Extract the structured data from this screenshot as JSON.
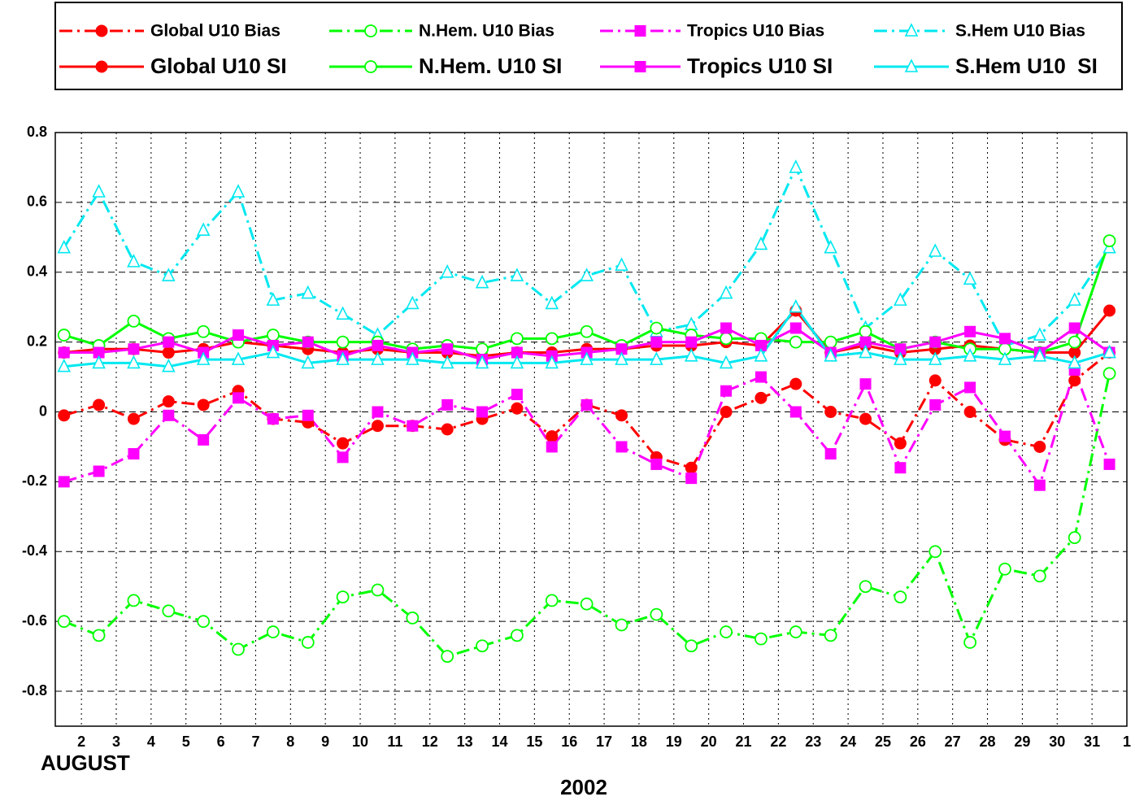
{
  "chart_data": {
    "type": "line",
    "x_label_start": "AUGUST",
    "xlabel": "2002",
    "x": [
      1.5,
      2.5,
      3.5,
      4.5,
      5.5,
      6.5,
      7.5,
      8.5,
      9.5,
      10.5,
      11.5,
      12.5,
      13.5,
      14.5,
      15.5,
      16.5,
      17.5,
      18.5,
      19.5,
      20.5,
      21.5,
      22.5,
      23.5,
      24.5,
      25.5,
      26.5,
      27.5,
      28.5,
      29.5,
      30.5,
      31.5
    ],
    "xlim": [
      1.25,
      32
    ],
    "xticks": [
      2,
      3,
      4,
      5,
      6,
      7,
      8,
      9,
      10,
      11,
      12,
      13,
      14,
      15,
      16,
      17,
      18,
      19,
      20,
      21,
      22,
      23,
      24,
      25,
      26,
      27,
      28,
      29,
      30,
      31,
      {
        "value": 32,
        "label": "1"
      }
    ],
    "xtick_highlight": [
      4,
      11,
      18,
      25,
      32
    ],
    "xtick_highlight_color": "#ff0000",
    "ylim": [
      -0.9,
      0.8
    ],
    "yticks": [
      -0.8,
      -0.6,
      -0.4,
      -0.2,
      0,
      0.2,
      0.4,
      0.6,
      0.8
    ],
    "grid": true,
    "legend": "top",
    "series": [
      {
        "name": "Global U10 Bias",
        "color": "#ff0000",
        "dash": "dashdot",
        "marker": "circle-filled",
        "values": [
          -0.01,
          0.02,
          -0.02,
          0.03,
          0.02,
          0.06,
          -0.02,
          -0.03,
          -0.09,
          -0.04,
          -0.04,
          -0.05,
          -0.02,
          0.01,
          -0.07,
          0.02,
          -0.01,
          -0.13,
          -0.16,
          0.0,
          0.04,
          0.08,
          0.0,
          -0.02,
          -0.09,
          0.09,
          0.0,
          -0.08,
          -0.1,
          0.09,
          0.17
        ]
      },
      {
        "name": "N.Hem. U10 Bias",
        "color": "#00ff00",
        "dash": "dashdot",
        "marker": "circle-open",
        "values": [
          -0.6,
          -0.64,
          -0.54,
          -0.57,
          -0.6,
          -0.68,
          -0.63,
          -0.66,
          -0.53,
          -0.51,
          -0.59,
          -0.7,
          -0.67,
          -0.64,
          -0.54,
          -0.55,
          -0.61,
          -0.58,
          -0.67,
          -0.63,
          -0.65,
          -0.63,
          -0.64,
          -0.5,
          -0.53,
          -0.4,
          -0.66,
          -0.45,
          -0.47,
          -0.36,
          0.11
        ]
      },
      {
        "name": "Tropics U10 Bias",
        "color": "#ff00ff",
        "dash": "dashdot",
        "marker": "square",
        "values": [
          -0.2,
          -0.17,
          -0.12,
          -0.01,
          -0.08,
          0.04,
          -0.02,
          -0.01,
          -0.13,
          0.0,
          -0.04,
          0.02,
          0.0,
          0.05,
          -0.1,
          0.02,
          -0.1,
          -0.15,
          -0.19,
          0.06,
          0.1,
          0.0,
          -0.12,
          0.08,
          -0.16,
          0.02,
          0.07,
          -0.07,
          -0.21,
          0.12,
          -0.15
        ]
      },
      {
        "name": "S.Hem U10 Bias",
        "color": "#00e8f0",
        "dash": "dashdot",
        "marker": "triangle-open",
        "values": [
          0.47,
          0.63,
          0.43,
          0.39,
          0.52,
          0.63,
          0.32,
          0.34,
          0.28,
          0.22,
          0.31,
          0.4,
          0.37,
          0.39,
          0.31,
          0.39,
          0.42,
          0.23,
          0.25,
          0.34,
          0.48,
          0.7,
          0.47,
          0.24,
          0.32,
          0.46,
          0.38,
          0.19,
          0.22,
          0.32,
          0.47
        ]
      },
      {
        "name": "Global U10 SI",
        "color": "#ff0000",
        "dash": "solid",
        "marker": "circle-filled",
        "values": [
          0.17,
          0.18,
          0.18,
          0.17,
          0.18,
          0.2,
          0.19,
          0.18,
          0.17,
          0.18,
          0.17,
          0.17,
          0.16,
          0.17,
          0.17,
          0.18,
          0.18,
          0.19,
          0.19,
          0.2,
          0.19,
          0.29,
          0.17,
          0.19,
          0.17,
          0.18,
          0.19,
          0.18,
          0.17,
          0.17,
          0.29
        ]
      },
      {
        "name": "N.Hem. U10 SI",
        "color": "#00ff00",
        "dash": "solid",
        "marker": "circle-open",
        "values": [
          0.22,
          0.19,
          0.26,
          0.21,
          0.23,
          0.2,
          0.22,
          0.2,
          0.2,
          0.2,
          0.18,
          0.19,
          0.18,
          0.21,
          0.21,
          0.23,
          0.19,
          0.24,
          0.22,
          0.21,
          0.21,
          0.2,
          0.2,
          0.23,
          0.18,
          0.2,
          0.18,
          0.18,
          0.17,
          0.2,
          0.49
        ]
      },
      {
        "name": "Tropics U10 SI",
        "color": "#ff00ff",
        "dash": "solid",
        "marker": "square",
        "values": [
          0.17,
          0.17,
          0.18,
          0.2,
          0.17,
          0.22,
          0.19,
          0.2,
          0.16,
          0.19,
          0.17,
          0.18,
          0.15,
          0.17,
          0.16,
          0.17,
          0.18,
          0.2,
          0.2,
          0.24,
          0.19,
          0.24,
          0.17,
          0.2,
          0.18,
          0.2,
          0.23,
          0.21,
          0.17,
          0.24,
          0.17
        ]
      },
      {
        "name": "S.Hem U10  SI",
        "color": "#00e8f0",
        "dash": "solid",
        "marker": "triangle-open",
        "values": [
          0.13,
          0.14,
          0.14,
          0.13,
          0.15,
          0.15,
          0.17,
          0.14,
          0.15,
          0.15,
          0.15,
          0.14,
          0.14,
          0.14,
          0.14,
          0.15,
          0.15,
          0.15,
          0.16,
          0.14,
          0.16,
          0.3,
          0.16,
          0.17,
          0.15,
          0.15,
          0.16,
          0.15,
          0.16,
          0.14,
          0.17
        ]
      }
    ]
  }
}
